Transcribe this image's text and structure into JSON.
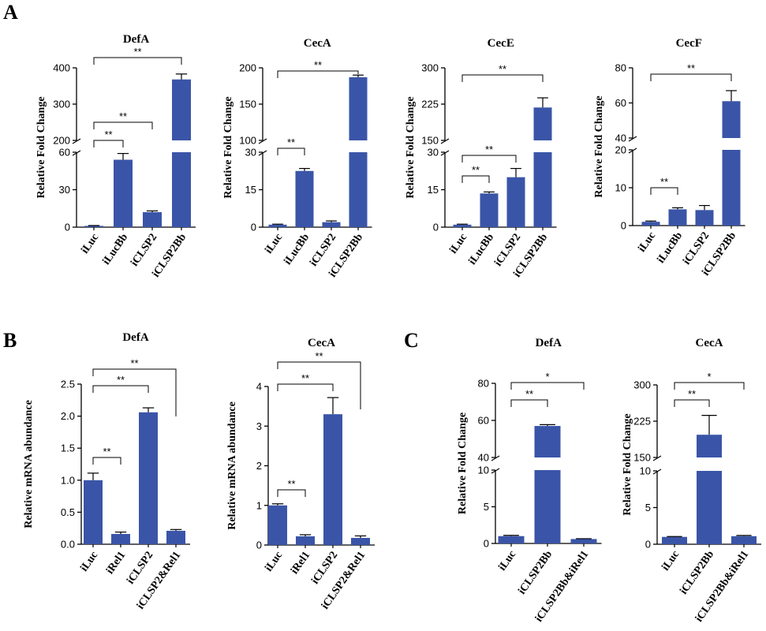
{
  "panels": [
    {
      "letter": "A"
    },
    {
      "letter": "B"
    },
    {
      "letter": "C"
    }
  ],
  "colors": {
    "bar": "#3a55a8",
    "axis": "#000000",
    "background": "#ffffff"
  },
  "chart_data": [
    {
      "panel": "A",
      "type": "bar",
      "title": "DefA",
      "ylabel": "Relative Fold Change",
      "categories": [
        "iLuc",
        "iLucBb",
        "iCLSP2",
        "iCLSP2Bb"
      ],
      "values": [
        1,
        54,
        12,
        368
      ],
      "errors": [
        0.3,
        5,
        1,
        15
      ],
      "broken_axis": true,
      "segments": [
        {
          "range": [
            0,
            60
          ],
          "ticks": [
            "0",
            "30",
            "60"
          ]
        },
        {
          "range": [
            200,
            400
          ],
          "ticks": [
            "200",
            "300",
            "400"
          ]
        }
      ],
      "significance": [
        {
          "from": 0,
          "to": 1,
          "label": "**"
        },
        {
          "from": 0,
          "to": 2,
          "label": "**"
        },
        {
          "from": 0,
          "to": 3,
          "label": "**"
        }
      ]
    },
    {
      "panel": "A",
      "type": "bar",
      "title": "CecA",
      "ylabel": "Relative Fold Change",
      "categories": [
        "iLuc",
        "iLucBb",
        "iCLSP2",
        "iCLSP2Bb"
      ],
      "values": [
        1,
        22.5,
        2,
        187
      ],
      "errors": [
        0.2,
        1,
        0.5,
        3
      ],
      "broken_axis": true,
      "segments": [
        {
          "range": [
            0,
            30
          ],
          "ticks": [
            "0",
            "15",
            "30"
          ]
        },
        {
          "range": [
            100,
            200
          ],
          "ticks": [
            "100",
            "150",
            "200"
          ]
        }
      ],
      "significance": [
        {
          "from": 0,
          "to": 1,
          "label": "**"
        },
        {
          "from": 0,
          "to": 3,
          "label": "**"
        }
      ]
    },
    {
      "panel": "A",
      "type": "bar",
      "title": "CecE",
      "ylabel": "Relative Fold Change",
      "categories": [
        "iLuc",
        "iLucBb",
        "iCLSP2",
        "iCLSP2Bb"
      ],
      "values": [
        1,
        13.5,
        20,
        218
      ],
      "errors": [
        0.2,
        0.6,
        3.5,
        20
      ],
      "broken_axis": true,
      "segments": [
        {
          "range": [
            0,
            30
          ],
          "ticks": [
            "0",
            "15",
            "30"
          ]
        },
        {
          "range": [
            150,
            300
          ],
          "ticks": [
            "150",
            "225",
            "300"
          ]
        }
      ],
      "significance": [
        {
          "from": 0,
          "to": 1,
          "label": "**"
        },
        {
          "from": 0,
          "to": 2,
          "label": "**"
        },
        {
          "from": 0,
          "to": 3,
          "label": "**"
        }
      ]
    },
    {
      "panel": "A",
      "type": "bar",
      "title": "CecF",
      "ylabel": "Relative Fold Change",
      "categories": [
        "iLuc",
        "iLucBb",
        "iCLSP2",
        "iCLSP2Bb"
      ],
      "values": [
        1,
        4.3,
        4.1,
        61
      ],
      "errors": [
        0.2,
        0.4,
        1.2,
        6
      ],
      "broken_axis": true,
      "segments": [
        {
          "range": [
            0,
            20
          ],
          "ticks": [
            "0",
            "10",
            "20"
          ]
        },
        {
          "range": [
            40,
            80
          ],
          "ticks": [
            "40",
            "60",
            "80"
          ]
        }
      ],
      "significance": [
        {
          "from": 0,
          "to": 1,
          "label": "**"
        },
        {
          "from": 0,
          "to": 3,
          "label": "**"
        }
      ]
    },
    {
      "panel": "B",
      "type": "bar",
      "title": "DefA",
      "ylabel": "Relative mRNA abundance",
      "categories": [
        "iLuc",
        "iRel1",
        "iCLSP2",
        "iCLSP2&Rel1"
      ],
      "values": [
        1.0,
        0.16,
        2.06,
        0.21
      ],
      "errors": [
        0.11,
        0.03,
        0.07,
        0.02
      ],
      "broken_axis": false,
      "segments": [
        {
          "range": [
            0,
            2.5
          ],
          "ticks": [
            "0.0",
            "0.5",
            "1.0",
            "1.5",
            "2.0",
            "2.5"
          ]
        }
      ],
      "significance": [
        {
          "from": 0,
          "to": 1,
          "label": "**"
        },
        {
          "from": 0,
          "to": 2,
          "label": "**"
        },
        {
          "from": 0,
          "to": 3,
          "label": "**"
        }
      ]
    },
    {
      "panel": "B",
      "type": "bar",
      "title": "CecA",
      "ylabel": "Relative mRNA abundance",
      "categories": [
        "iLuc",
        "iRel1",
        "iCLSP2",
        "iCLSP2&Rel1"
      ],
      "values": [
        1.0,
        0.22,
        3.3,
        0.18
      ],
      "errors": [
        0.04,
        0.04,
        0.42,
        0.05
      ],
      "broken_axis": false,
      "segments": [
        {
          "range": [
            0,
            4
          ],
          "ticks": [
            "0",
            "1",
            "2",
            "3",
            "4"
          ]
        }
      ],
      "significance": [
        {
          "from": 0,
          "to": 1,
          "label": "**"
        },
        {
          "from": 0,
          "to": 2,
          "label": "**"
        },
        {
          "from": 0,
          "to": 3,
          "label": "**"
        }
      ]
    },
    {
      "panel": "C",
      "type": "bar",
      "title": "DefA",
      "ylabel": "Relative Fold Change",
      "categories": [
        "iLuc",
        "iCLSP2Bb",
        "iCLSP2Bb&iRel1"
      ],
      "values": [
        1,
        57,
        0.6
      ],
      "errors": [
        0.1,
        0.7,
        0.05
      ],
      "broken_axis": true,
      "segments": [
        {
          "range": [
            0,
            10
          ],
          "ticks": [
            "0",
            "5",
            "10"
          ]
        },
        {
          "range": [
            40,
            80
          ],
          "ticks": [
            "40",
            "60",
            "80"
          ]
        }
      ],
      "significance": [
        {
          "from": 0,
          "to": 1,
          "label": "**"
        },
        {
          "from": 0,
          "to": 2,
          "label": "*"
        }
      ]
    },
    {
      "panel": "C",
      "type": "bar",
      "title": "CecA",
      "ylabel": "Relative Fold Change",
      "categories": [
        "iLuc",
        "iCLSP2Bb",
        "iCLSP2Bb&iRel1"
      ],
      "values": [
        1,
        197,
        1.1
      ],
      "errors": [
        0.05,
        40,
        0.1
      ],
      "broken_axis": true,
      "segments": [
        {
          "range": [
            0,
            10
          ],
          "ticks": [
            "0",
            "5",
            "10"
          ]
        },
        {
          "range": [
            150,
            300
          ],
          "ticks": [
            "150",
            "225",
            "300"
          ]
        }
      ],
      "significance": [
        {
          "from": 0,
          "to": 1,
          "label": "**"
        },
        {
          "from": 0,
          "to": 2,
          "label": "*"
        }
      ]
    }
  ]
}
